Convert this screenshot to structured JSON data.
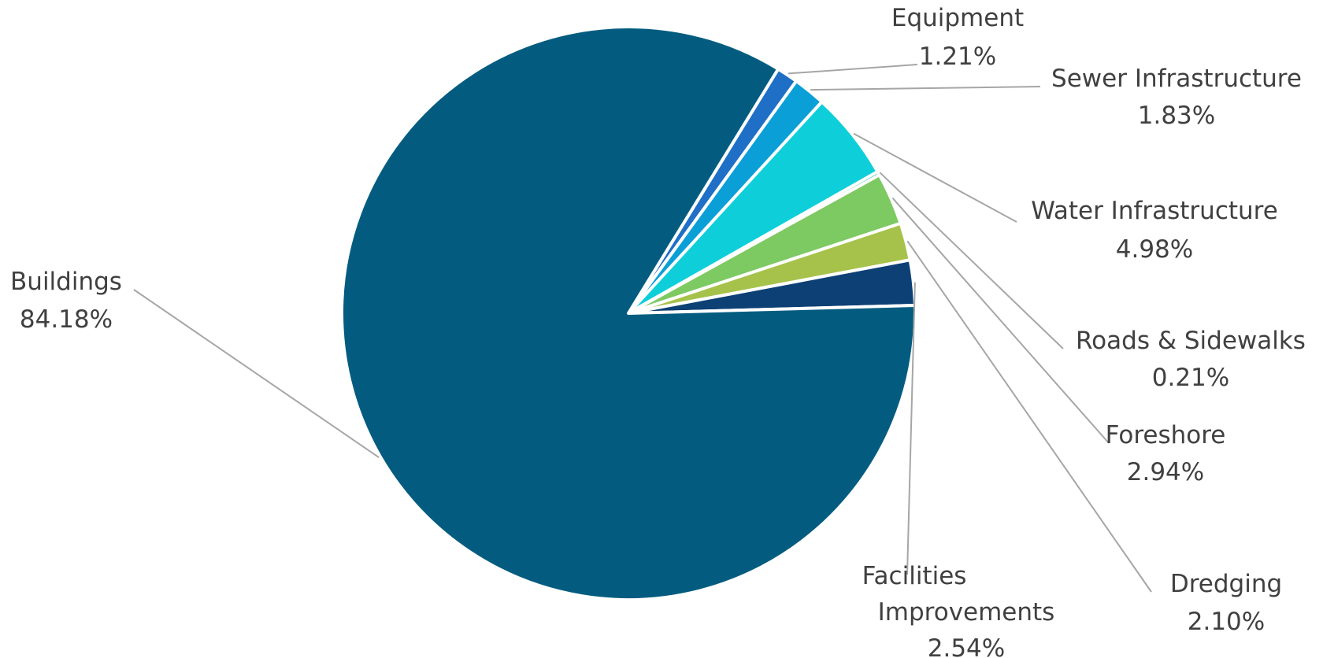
{
  "chart_data": {
    "type": "pie",
    "title": "",
    "slices": [
      {
        "name": "Equipment",
        "value": 1.21,
        "label": "1.21%",
        "color": "#1f6fc6"
      },
      {
        "name": "Sewer Infrastructure",
        "value": 1.83,
        "label": "1.83%",
        "color": "#0b9fd8"
      },
      {
        "name": "Water Infrastructure",
        "value": 4.98,
        "label": "4.98%",
        "color": "#0ecfd9"
      },
      {
        "name": "Roads & Sidewalks",
        "value": 0.21,
        "label": "0.21%",
        "color": "#36c9b3"
      },
      {
        "name": "Foreshore",
        "value": 2.94,
        "label": "2.94%",
        "color": "#7dc962"
      },
      {
        "name": "Dredging",
        "value": 2.1,
        "label": "2.10%",
        "color": "#a6c24a"
      },
      {
        "name": "Facilities Improvements",
        "value": 2.54,
        "label": "2.54%",
        "color": "#0d4074"
      },
      {
        "name": "Buildings",
        "value": 84.18,
        "label": "84.18%",
        "color": "#035c80"
      }
    ],
    "legend": "none",
    "data_labels": "outside with leader lines"
  }
}
